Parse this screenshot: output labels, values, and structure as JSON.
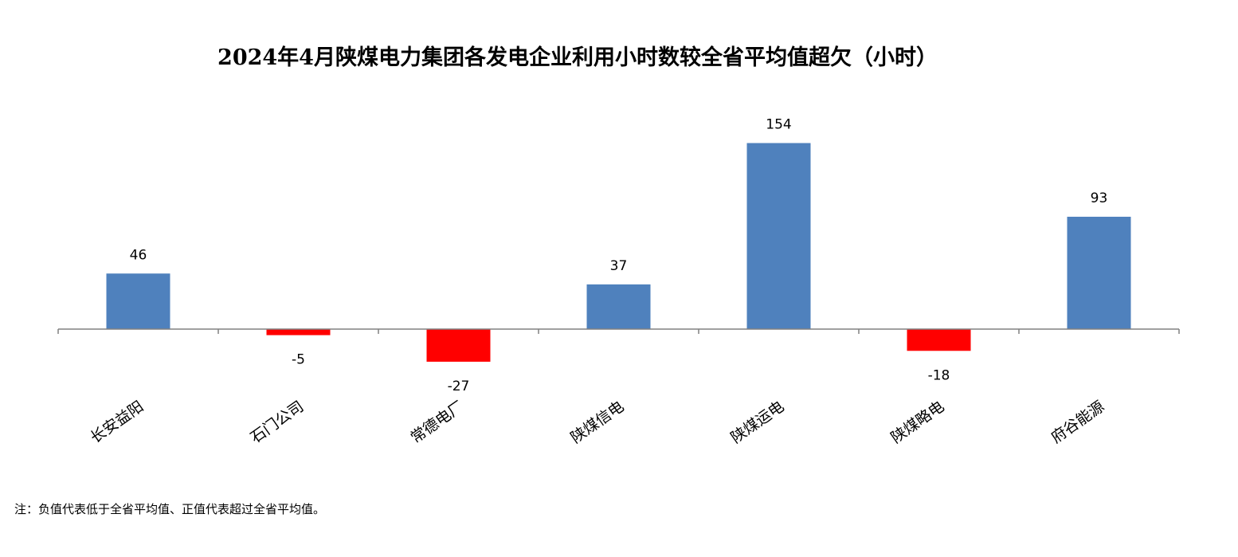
{
  "chart_data": {
    "type": "bar",
    "title": "2024年4月陕煤电力集团各发电企业利用小时数较全省平均值超欠（小时）",
    "categories": [
      "长安益阳",
      "石门公司",
      "常德电厂",
      "陕煤信电",
      "陕煤运电",
      "陕煤略电",
      "府谷能源"
    ],
    "values": [
      46,
      -5,
      -27,
      37,
      154,
      -18,
      93
    ],
    "xlabel": "",
    "ylabel": "",
    "ylim": [
      -50,
      170
    ],
    "grid": false,
    "legend": "none",
    "data_labels": true,
    "colors": {
      "positive": "#4f81bd",
      "negative": "#ff0000",
      "axis": "#808080"
    }
  },
  "note": "注：负值代表低于全省平均值、正值代表超过全省平均值。"
}
